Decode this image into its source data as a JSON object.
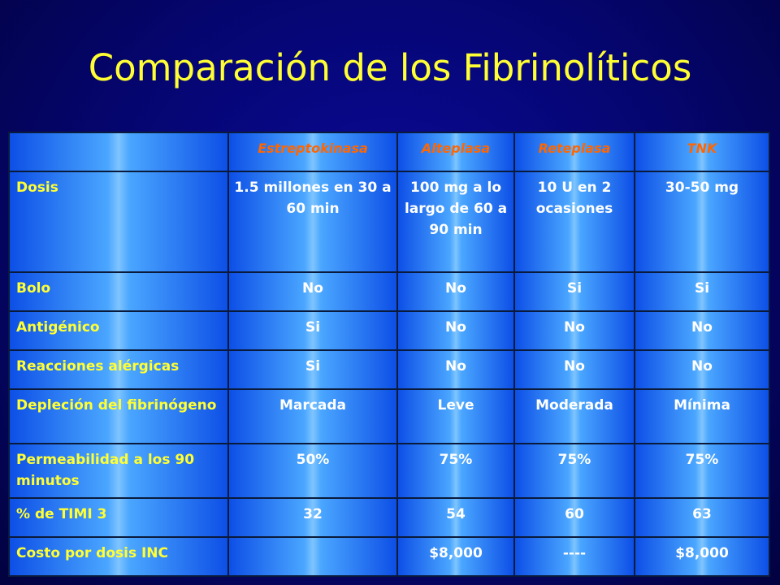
{
  "title": "Comparación de los Fibrinolíticos",
  "table": {
    "corner": "",
    "columns": [
      "Estreptokinasa",
      "Alteplasa",
      "Reteplasa",
      "TNK"
    ],
    "rows": [
      {
        "label": "Dosis",
        "cells": [
          "1.5 millones en 30 a 60 min",
          "100 mg a lo largo de 60 a 90 min",
          "10 U en 2 ocasiones",
          "30-50 mg"
        ]
      },
      {
        "label": "Bolo",
        "cells": [
          "No",
          "No",
          "Si",
          "Si"
        ]
      },
      {
        "label": "Antigénico",
        "cells": [
          "Si",
          "No",
          "No",
          "No"
        ]
      },
      {
        "label": "Reacciones alérgicas",
        "cells": [
          "Si",
          "No",
          "No",
          "No"
        ]
      },
      {
        "label": "Depleción del fibrinógeno",
        "cells": [
          "Marcada",
          "Leve",
          "Moderada",
          "Mínima"
        ]
      },
      {
        "label": "Permeabilidad a los 90 minutos",
        "cells": [
          "50%",
          "75%",
          "75%",
          "75%"
        ]
      },
      {
        "label": "% de TIMI 3",
        "cells": [
          "32",
          "54",
          "60",
          "63"
        ]
      },
      {
        "label": "Costo por dosis INC",
        "cells": [
          "",
          "$8,000",
          "----",
          "$8,000"
        ]
      }
    ]
  },
  "colors": {
    "background": "#05056e",
    "title": "#ffff33",
    "header_text": "#ff6600",
    "row_label_text": "#ffff33",
    "cell_text": "#ffffff",
    "cell_fill": "#4aa6ff"
  }
}
